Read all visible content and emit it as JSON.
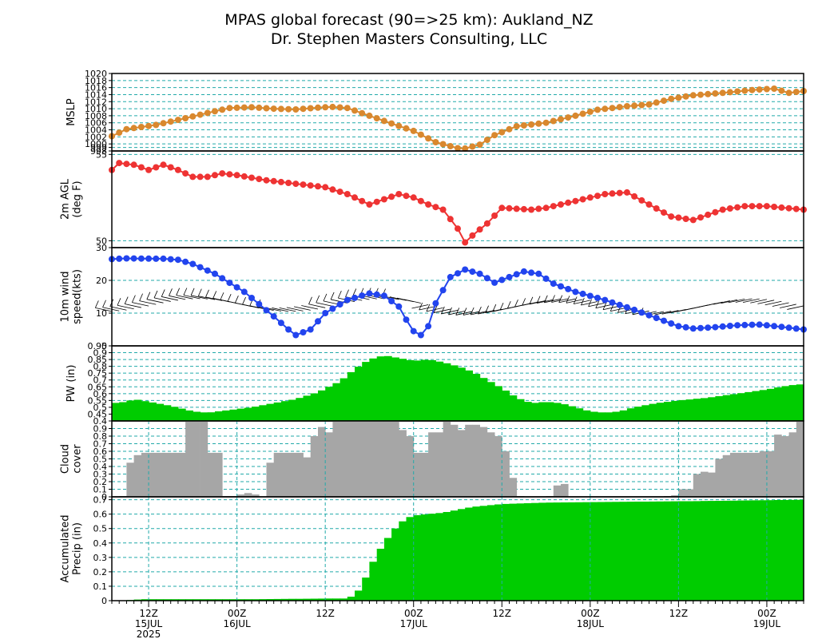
{
  "header": {
    "title": "MPAS global forecast (90=>25 km): Aukland_NZ",
    "subtitle": "Dr. Stephen Masters Consulting, LLC"
  },
  "time_axis": {
    "labels": [
      {
        "h": 12,
        "line1": "12Z",
        "line2": "15JUL",
        "line3": "2025"
      },
      {
        "h": 24,
        "line1": "00Z",
        "line2": "16JUL",
        "line3": ""
      },
      {
        "h": 36,
        "line1": "12Z",
        "line2": "",
        "line3": ""
      },
      {
        "h": 48,
        "line1": "00Z",
        "line2": "17JUL",
        "line3": ""
      },
      {
        "h": 60,
        "line1": "12Z",
        "line2": "",
        "line3": ""
      },
      {
        "h": 72,
        "line1": "00Z",
        "line2": "18JUL",
        "line3": ""
      },
      {
        "h": 84,
        "line1": "12Z",
        "line2": "",
        "line3": ""
      },
      {
        "h": 96,
        "line1": "00Z",
        "line2": "19JUL",
        "line3": ""
      }
    ],
    "start": "15JUL 2025 07Z",
    "end": "19JUL 2025 03Z",
    "hours": [
      7,
      101
    ]
  },
  "colors": {
    "mslp": "#d9882e",
    "temp": "#ee3333",
    "wind": "#2244ee",
    "pw": "#00cc00",
    "cloud": "#a6a6a6",
    "precip": "#00cc00",
    "grid": "#22aaaa"
  },
  "chart_data": [
    {
      "type": "line",
      "panel": "mslp",
      "ylabel": [
        "MSLP"
      ],
      "ylim": [
        998,
        1020
      ],
      "yticks": [
        998,
        999,
        1000,
        1002,
        1004,
        1006,
        1008,
        1010,
        1012,
        1014,
        1016,
        1018,
        1020
      ],
      "ytick_labels": [
        "998",
        "999",
        "1000",
        "1002",
        "1004",
        "1006",
        "1008",
        "1010",
        "1012",
        "1014",
        "1016",
        "1018",
        "1020"
      ],
      "keypoints": [
        [
          7,
          1002.2
        ],
        [
          9,
          1004.2
        ],
        [
          13,
          1005.4
        ],
        [
          17,
          1007.3
        ],
        [
          20,
          1008.8
        ],
        [
          23,
          1010.2
        ],
        [
          26,
          1010.4
        ],
        [
          29,
          1010.0
        ],
        [
          32,
          1009.8
        ],
        [
          35,
          1010.3
        ],
        [
          37,
          1010.5
        ],
        [
          39,
          1010.2
        ],
        [
          42,
          1008.0
        ],
        [
          45,
          1005.8
        ],
        [
          48,
          1003.7
        ],
        [
          51,
          1000.5
        ],
        [
          54,
          998.8
        ],
        [
          55,
          998.7
        ],
        [
          57,
          999.8
        ],
        [
          59,
          1002.5
        ],
        [
          62,
          1005.0
        ],
        [
          66,
          1006.0
        ],
        [
          70,
          1008.0
        ],
        [
          73,
          1009.7
        ],
        [
          77,
          1010.7
        ],
        [
          80,
          1011.2
        ],
        [
          83,
          1012.8
        ],
        [
          86,
          1013.8
        ],
        [
          90,
          1014.5
        ],
        [
          94,
          1015.3
        ],
        [
          97,
          1015.7
        ],
        [
          99,
          1014.5
        ],
        [
          101,
          1015.0
        ]
      ]
    },
    {
      "type": "line",
      "panel": "temp",
      "ylabel": [
        "2m AGL",
        "(deg F)"
      ],
      "ylim": [
        49.6,
        55.2
      ],
      "yticks": [
        50,
        55
      ],
      "ytick_labels": [
        "50",
        "55"
      ],
      "keypoints": [
        [
          7,
          54.1
        ],
        [
          8,
          54.5
        ],
        [
          10,
          54.4
        ],
        [
          12,
          54.1
        ],
        [
          14,
          54.4
        ],
        [
          16,
          54.1
        ],
        [
          18,
          53.7
        ],
        [
          20,
          53.7
        ],
        [
          22,
          53.9
        ],
        [
          24,
          53.8
        ],
        [
          28,
          53.5
        ],
        [
          32,
          53.3
        ],
        [
          36,
          53.1
        ],
        [
          39,
          52.7
        ],
        [
          42,
          52.1
        ],
        [
          44,
          52.4
        ],
        [
          46,
          52.7
        ],
        [
          48,
          52.5
        ],
        [
          50,
          52.1
        ],
        [
          52,
          51.8
        ],
        [
          54,
          50.7
        ],
        [
          55,
          49.9
        ],
        [
          56,
          50.3
        ],
        [
          58,
          51.0
        ],
        [
          60,
          51.9
        ],
        [
          64,
          51.8
        ],
        [
          66,
          51.9
        ],
        [
          70,
          52.3
        ],
        [
          74,
          52.7
        ],
        [
          77,
          52.8
        ],
        [
          80,
          52.1
        ],
        [
          83,
          51.4
        ],
        [
          86,
          51.2
        ],
        [
          88,
          51.5
        ],
        [
          90,
          51.8
        ],
        [
          93,
          52.0
        ],
        [
          96,
          52.0
        ],
        [
          101,
          51.8
        ]
      ]
    },
    {
      "type": "line",
      "panel": "wind",
      "ylabel": [
        "10m wind",
        "speed(kts)"
      ],
      "ylim": [
        0,
        30
      ],
      "yticks": [
        0,
        10,
        20,
        30
      ],
      "ytick_labels": [
        "0",
        "10",
        "20",
        "30"
      ],
      "barb_note": "wind barbs plotted along the series",
      "keypoints": [
        [
          7,
          26.5
        ],
        [
          9,
          26.7
        ],
        [
          14,
          26.6
        ],
        [
          16,
          26.3
        ],
        [
          18,
          25.0
        ],
        [
          21,
          22.0
        ],
        [
          25,
          16.5
        ],
        [
          29,
          9.0
        ],
        [
          31,
          5.0
        ],
        [
          32,
          3.3
        ],
        [
          34,
          5.0
        ],
        [
          36,
          10.0
        ],
        [
          39,
          14.0
        ],
        [
          42,
          16.0
        ],
        [
          44,
          15.3
        ],
        [
          46,
          12.0
        ],
        [
          47,
          8.0
        ],
        [
          48,
          4.5
        ],
        [
          49,
          3.3
        ],
        [
          50,
          6.0
        ],
        [
          51,
          13.0
        ],
        [
          53,
          21.0
        ],
        [
          55,
          23.3
        ],
        [
          57,
          22.0
        ],
        [
          59,
          19.3
        ],
        [
          61,
          21.0
        ],
        [
          63,
          22.7
        ],
        [
          65,
          22.0
        ],
        [
          67,
          19.0
        ],
        [
          70,
          16.5
        ],
        [
          74,
          14.0
        ],
        [
          78,
          11.0
        ],
        [
          81,
          8.5
        ],
        [
          84,
          6.0
        ],
        [
          86,
          5.3
        ],
        [
          89,
          5.7
        ],
        [
          92,
          6.3
        ],
        [
          95,
          6.5
        ],
        [
          98,
          5.8
        ],
        [
          101,
          5.0
        ]
      ]
    },
    {
      "type": "area",
      "panel": "pw",
      "ylabel": [
        "PW (in)"
      ],
      "ylim": [
        0.4,
        0.95
      ],
      "yticks": [
        0.4,
        0.45,
        0.5,
        0.55,
        0.6,
        0.65,
        0.7,
        0.75,
        0.8,
        0.85,
        0.9,
        0.95
      ],
      "ytick_labels": [
        "0.4",
        "0.45",
        "0.5",
        "0.55",
        "0.6",
        "0.65",
        "0.7",
        "0.75",
        "0.8",
        "0.85",
        "0.9",
        "0.95"
      ],
      "keypoints": [
        [
          7,
          0.53
        ],
        [
          9,
          0.54
        ],
        [
          10,
          0.56
        ],
        [
          12,
          0.54
        ],
        [
          15,
          0.51
        ],
        [
          18,
          0.47
        ],
        [
          20,
          0.46
        ],
        [
          23,
          0.48
        ],
        [
          26,
          0.5
        ],
        [
          29,
          0.53
        ],
        [
          32,
          0.56
        ],
        [
          35,
          0.61
        ],
        [
          38,
          0.69
        ],
        [
          40,
          0.78
        ],
        [
          42,
          0.85
        ],
        [
          44,
          0.88
        ],
        [
          46,
          0.86
        ],
        [
          48,
          0.84
        ],
        [
          50,
          0.85
        ],
        [
          52,
          0.83
        ],
        [
          54,
          0.8
        ],
        [
          56,
          0.76
        ],
        [
          58,
          0.7
        ],
        [
          60,
          0.64
        ],
        [
          62,
          0.57
        ],
        [
          64,
          0.53
        ],
        [
          66,
          0.54
        ],
        [
          68,
          0.53
        ],
        [
          70,
          0.5
        ],
        [
          72,
          0.47
        ],
        [
          74,
          0.46
        ],
        [
          76,
          0.47
        ],
        [
          78,
          0.5
        ],
        [
          81,
          0.53
        ],
        [
          84,
          0.55
        ],
        [
          88,
          0.57
        ],
        [
          92,
          0.6
        ],
        [
          96,
          0.63
        ],
        [
          99,
          0.66
        ],
        [
          101,
          0.67
        ]
      ]
    },
    {
      "type": "bar",
      "panel": "cloud",
      "ylabel": [
        "Cloud",
        "cover"
      ],
      "ylim": [
        0,
        1.0
      ],
      "yticks": [
        0,
        0.1,
        0.2,
        0.3,
        0.4,
        0.5,
        0.6,
        0.7,
        0.8,
        0.9
      ],
      "ytick_labels": [
        "0",
        "0.1",
        "0.2",
        "0.3",
        "0.4",
        "0.5",
        "0.6",
        "0.7",
        "0.8",
        "0.9"
      ],
      "start_hour": 7,
      "values": [
        0,
        0.01,
        0.45,
        0.55,
        0.58,
        0.58,
        0.58,
        0.58,
        0.58,
        0.58,
        1.0,
        1.0,
        1.0,
        0.58,
        0.58,
        0.01,
        0.01,
        0.03,
        0.05,
        0.03,
        0,
        0.45,
        0.58,
        0.58,
        0.58,
        0.58,
        0.52,
        0.8,
        0.92,
        0.85,
        1.0,
        1.0,
        1.0,
        1.0,
        1.0,
        1.0,
        1.0,
        1.0,
        1.0,
        0.88,
        0.8,
        0.58,
        0.58,
        0.85,
        0.85,
        1.0,
        0.95,
        0.88,
        0.95,
        0.95,
        0.92,
        0.85,
        0.8,
        0.6,
        0.25,
        0.01,
        0,
        0,
        0,
        0.01,
        0.15,
        0.17,
        0,
        0,
        0,
        0,
        0,
        0,
        0,
        0,
        0,
        0,
        0,
        0,
        0,
        0.01,
        0.02,
        0.1,
        0.1,
        0.3,
        0.33,
        0.32,
        0.5,
        0.55,
        0.58,
        0.58,
        0.58,
        0.58,
        0.6,
        0.6,
        0.82,
        0.8,
        0.85,
        1.0
      ]
    },
    {
      "type": "area",
      "panel": "precip",
      "ylabel": [
        "Accumulated",
        "Precip (in)"
      ],
      "ylim": [
        0,
        0.72
      ],
      "yticks": [
        0,
        0.1,
        0.2,
        0.3,
        0.4,
        0.5,
        0.6,
        0.7
      ],
      "ytick_labels": [
        "0",
        "0.1",
        "0.2",
        "0.3",
        "0.4",
        "0.5",
        "0.6",
        "0.7"
      ],
      "keypoints": [
        [
          7,
          0.0
        ],
        [
          10,
          0.005
        ],
        [
          11,
          0.01
        ],
        [
          26,
          0.01
        ],
        [
          37,
          0.015
        ],
        [
          39,
          0.015
        ],
        [
          40,
          0.04
        ],
        [
          41,
          0.1
        ],
        [
          42,
          0.22
        ],
        [
          43,
          0.32
        ],
        [
          44,
          0.4
        ],
        [
          45,
          0.47
        ],
        [
          46,
          0.53
        ],
        [
          47,
          0.57
        ],
        [
          48,
          0.59
        ],
        [
          50,
          0.6
        ],
        [
          52,
          0.61
        ],
        [
          54,
          0.63
        ],
        [
          56,
          0.65
        ],
        [
          58,
          0.66
        ],
        [
          60,
          0.67
        ],
        [
          66,
          0.68
        ],
        [
          75,
          0.685
        ],
        [
          86,
          0.69
        ],
        [
          101,
          0.7
        ]
      ]
    }
  ]
}
